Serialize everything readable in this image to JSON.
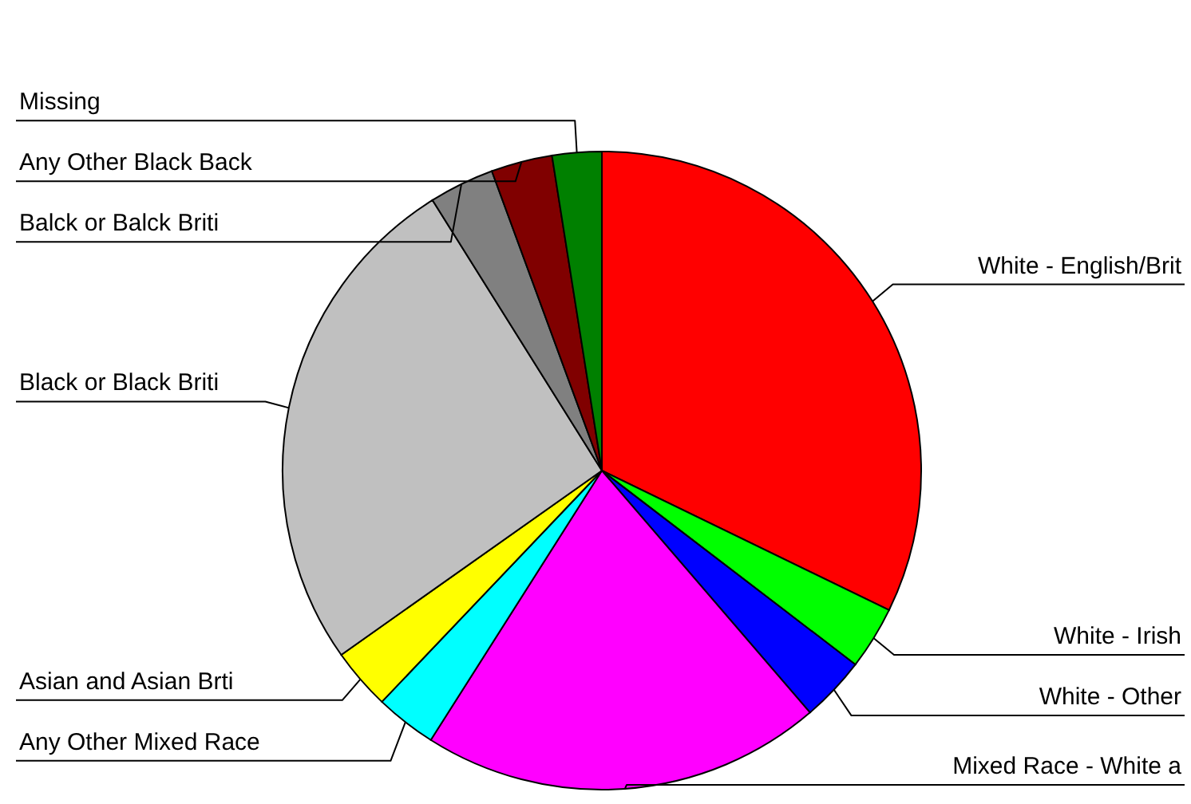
{
  "chart_data": {
    "type": "pie",
    "categories": [
      "White - English/Brit",
      "White - Irish",
      "White - Other",
      "Mixed Race - White a",
      "Any Other Mixed Race",
      "Asian and Asian Brti",
      "Black or Black Briti",
      "Balck or Balck Briti",
      "Any Other Black Back",
      "Missing"
    ],
    "values": [
      32.2,
      3.2,
      3.3,
      20.3,
      3.1,
      3.1,
      25.9,
      3.3,
      3.1,
      2.5
    ],
    "colors": [
      "#ff0000",
      "#00ff00",
      "#0000ff",
      "#ff00ff",
      "#00ffff",
      "#ffff00",
      "#c0c0c0",
      "#808080",
      "#800000",
      "#008000"
    ]
  }
}
